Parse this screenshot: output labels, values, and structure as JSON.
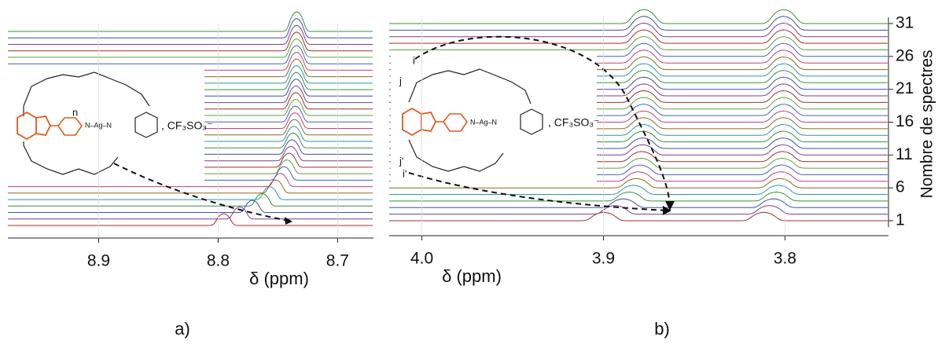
{
  "chart_data": [
    {
      "type": "spectra",
      "panel_label": "a)",
      "x_label": "δ (ppm)",
      "xlim": [
        8.976,
        8.67
      ],
      "xticks": [
        8.9,
        8.8,
        8.7
      ],
      "labels": [
        "n"
      ],
      "counter_ion": ", CF₃SO₃⁻"
    },
    {
      "type": "spectra",
      "panel_label": "b)",
      "x_label": "δ (ppm)",
      "xlim": [
        4.018,
        3.743
      ],
      "xticks": [
        {
          "value": 4.0,
          "label": "4.0"
        },
        3.9,
        3.8
      ],
      "y_label": "Nombre de spectres",
      "ylim": [
        1,
        31
      ],
      "yticks": [
        31,
        26,
        21,
        16,
        11,
        6,
        1
      ],
      "labels": [
        "i",
        "j",
        "j'",
        "i'"
      ],
      "counter_ion": ", CF₃SO₃⁻"
    }
  ]
}
